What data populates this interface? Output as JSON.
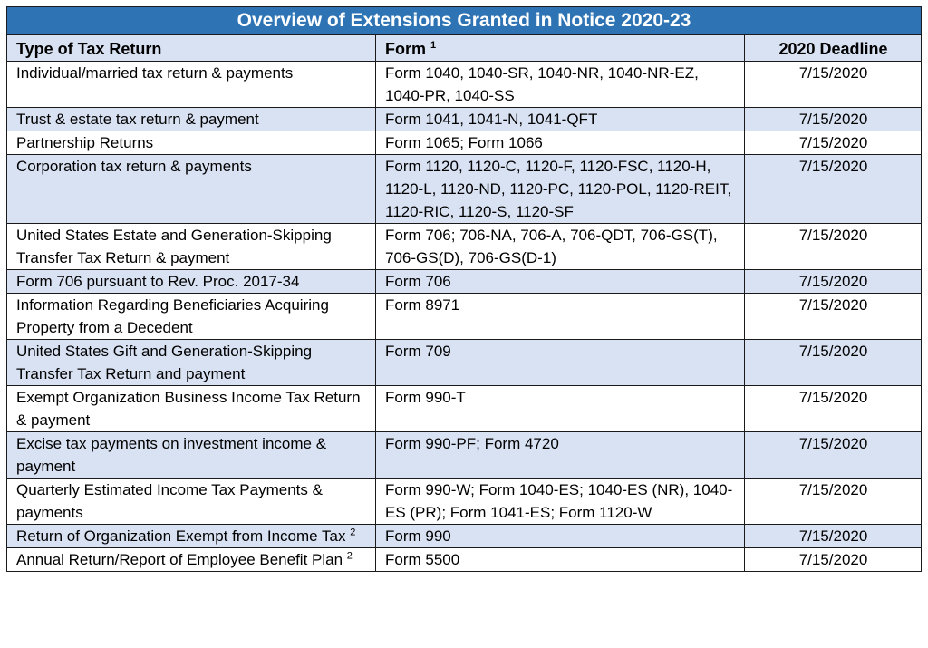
{
  "title": "Overview of Extensions Granted in Notice 2020-23",
  "headers": {
    "type": "Type of Tax Return",
    "form": "Form",
    "form_sup": "1",
    "deadline": "2020 Deadline"
  },
  "rows": [
    {
      "type": "Individual/married tax return & payments",
      "type_sup": "",
      "form": "Form 1040, 1040-SR, 1040-NR, 1040-NR-EZ, 1040-PR, 1040-SS",
      "deadline": "7/15/2020"
    },
    {
      "type": "Trust & estate tax return & payment",
      "type_sup": "",
      "form": "Form 1041, 1041-N, 1041-QFT",
      "deadline": "7/15/2020"
    },
    {
      "type": "Partnership Returns",
      "type_sup": "",
      "form": "Form 1065; Form 1066",
      "deadline": "7/15/2020"
    },
    {
      "type": "Corporation tax return & payments",
      "type_sup": "",
      "form": "Form 1120, 1120-C, 1120-F, 1120-FSC, 1120-H, 1120-L, 1120-ND, 1120-PC, 1120-POL, 1120-REIT, 1120-RIC, 1120-S, 1120-SF",
      "deadline": "7/15/2020"
    },
    {
      "type": "United States Estate and Generation-Skipping Transfer Tax Return & payment",
      "type_sup": "",
      "form": "Form 706; 706-NA, 706-A, 706-QDT, 706-GS(T), 706-GS(D), 706-GS(D-1)",
      "deadline": "7/15/2020"
    },
    {
      "type": "Form 706 pursuant to Rev. Proc. 2017-34",
      "type_sup": "",
      "form": "Form 706",
      "deadline": "7/15/2020"
    },
    {
      "type": "Information Regarding Beneficiaries Acquiring Property from a Decedent",
      "type_sup": "",
      "form": "Form 8971",
      "deadline": "7/15/2020"
    },
    {
      "type": "United States Gift and Generation-Skipping Transfer Tax Return and payment",
      "type_sup": "",
      "form": "Form 709",
      "deadline": "7/15/2020"
    },
    {
      "type": "Exempt Organization Business Income Tax Return & payment",
      "type_sup": "",
      "form": "Form 990-T",
      "deadline": "7/15/2020"
    },
    {
      "type": "Excise tax payments on investment income & payment",
      "type_sup": "",
      "form": "Form 990-PF; Form 4720",
      "deadline": "7/15/2020"
    },
    {
      "type": "Quarterly Estimated Income Tax Payments & payments",
      "type_sup": "",
      "form": "Form 990-W; Form 1040-ES; 1040-ES (NR), 1040-ES (PR); Form 1041-ES; Form 1120-W",
      "deadline": "7/15/2020"
    },
    {
      "type": "Return of Organization Exempt from Income Tax",
      "type_sup": "2",
      "form": "Form 990",
      "deadline": "7/15/2020"
    },
    {
      "type": "Annual Return/Report of Employee Benefit Plan",
      "type_sup": "2",
      "form": "Form 5500",
      "deadline": "7/15/2020"
    }
  ],
  "colors": {
    "title_bg": "#2e74b5",
    "shade_bg": "#d9e2f3",
    "plain_bg": "#ffffff"
  }
}
